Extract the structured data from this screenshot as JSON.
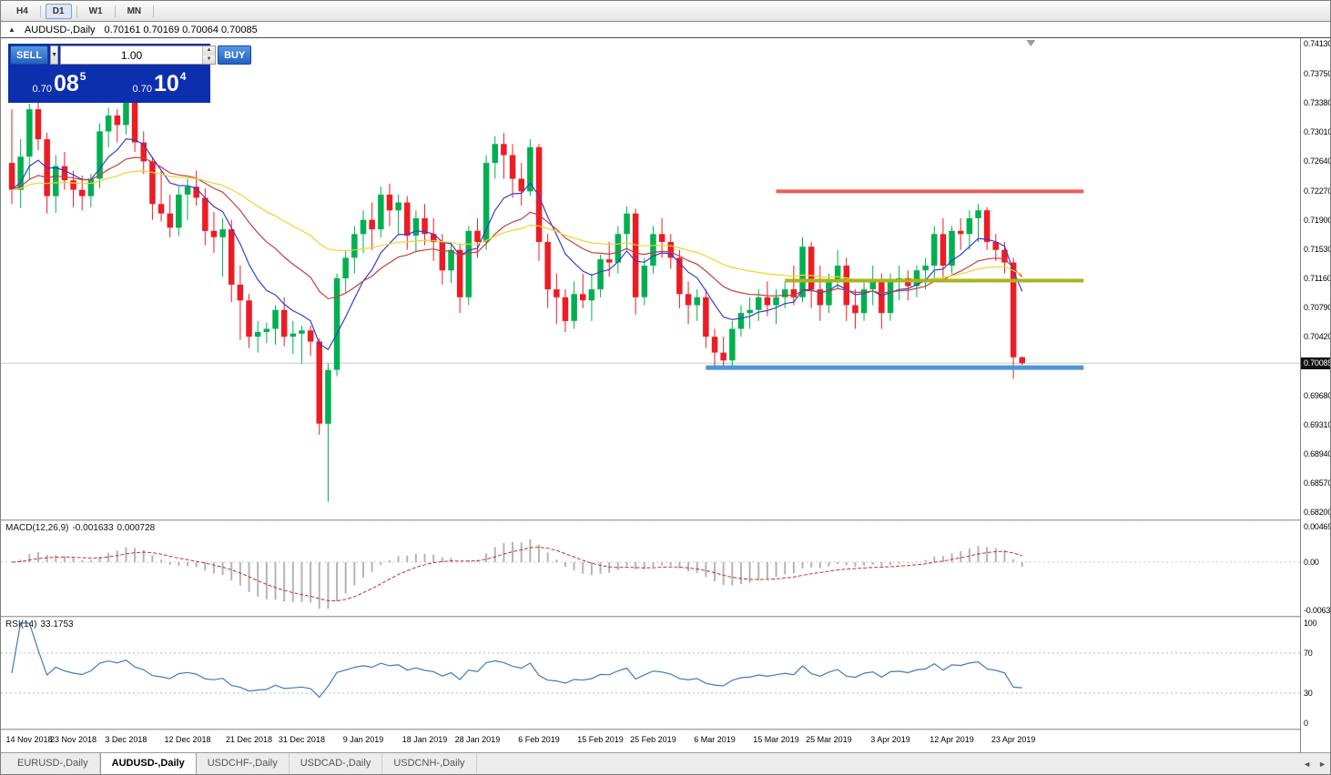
{
  "toolbar": {
    "periods": [
      "H4",
      "D1",
      "W1",
      "MN"
    ],
    "active": "D1"
  },
  "chart_header": {
    "collapse_icon": "▲",
    "symbol": "AUDUSD-,Daily",
    "ohlc": "0.70161 0.70169 0.70064 0.70085"
  },
  "one_click": {
    "sell_label": "SELL",
    "buy_label": "BUY",
    "volume": "1.00",
    "sell_price": {
      "big": "0.70",
      "pips": "08",
      "frac": "5"
    },
    "buy_price": {
      "big": "0.70",
      "pips": "10",
      "frac": "4"
    }
  },
  "price_scale": {
    "labels": [
      "0.74130",
      "0.73750",
      "0.73380",
      "0.73010",
      "0.72640",
      "0.72270",
      "0.71900",
      "0.71530",
      "0.71160",
      "0.70790",
      "0.70420",
      "0.69680",
      "0.69310",
      "0.68940",
      "0.68570",
      "0.68200"
    ],
    "current": "0.70085"
  },
  "indicators": {
    "macd": {
      "title": "MACD(12,26,9)",
      "value_main": "-0.001633",
      "value_signal": "0.000728",
      "scale_labels": [
        "0.004694",
        "0.00",
        "-0.00639"
      ],
      "ylim": [
        -0.00639,
        0.004694
      ],
      "histogram_color": "#b4b4b4",
      "signal_color": "#c03232"
    },
    "rsi": {
      "title": "RSI(14)",
      "value": "33.1753",
      "scale_labels": [
        "100",
        "70",
        "30",
        "0"
      ],
      "levels": [
        70,
        30
      ],
      "ylim": [
        0,
        100
      ],
      "line_color": "#3f7cb8"
    }
  },
  "tabs": {
    "items": [
      "EURUSD-,Daily",
      "AUDUSD-,Daily",
      "USDCHF-,Daily",
      "USDCAD-,Daily",
      "USDCNH-,Daily"
    ],
    "active": "AUDUSD-,Daily",
    "scroll_left_icon": "◄",
    "scroll_right_icon": "►"
  },
  "chart_data": {
    "type": "candlestick",
    "symbol": "AUDUSD",
    "timeframe": "Daily",
    "ylim": [
      0.682,
      0.7413
    ],
    "colors": {
      "up": "#00b050",
      "down": "#ed1c24"
    },
    "x_labels": [
      [
        0,
        "14 Nov 2018"
      ],
      [
        7,
        "23 Nov 2018"
      ],
      [
        13,
        "3 Dec 2018"
      ],
      [
        20,
        "12 Dec 2018"
      ],
      [
        27,
        "21 Dec 2018"
      ],
      [
        33,
        "31 Dec 2018"
      ],
      [
        40,
        "9 Jan 2019"
      ],
      [
        47,
        "18 Jan 2019"
      ],
      [
        53,
        "28 Jan 2019"
      ],
      [
        60,
        "6 Feb 2019"
      ],
      [
        67,
        "15 Feb 2019"
      ],
      [
        73,
        "25 Feb 2019"
      ],
      [
        80,
        "6 Mar 2019"
      ],
      [
        87,
        "15 Mar 2019"
      ],
      [
        93,
        "25 Mar 2019"
      ],
      [
        100,
        "3 Apr 2019"
      ],
      [
        107,
        "12 Apr 2019"
      ],
      [
        114,
        "23 Apr 2019"
      ]
    ],
    "moving_averages": [
      {
        "name": "ma-fast-blue",
        "period": 8,
        "color": "#3b3bd1"
      },
      {
        "name": "ma-medium-red",
        "period": 20,
        "color": "#c2403f"
      },
      {
        "name": "ma-slow-yellow",
        "period": 45,
        "color": "#f2d22e"
      }
    ],
    "trendlines": [
      {
        "name": "resistance-line",
        "price": 0.7226,
        "from_index": 87,
        "to_index": 122,
        "color": "#f05b57",
        "width": 4
      },
      {
        "name": "pivot-line",
        "price": 0.7113,
        "from_index": 88,
        "to_index": 122,
        "color": "#aab41c",
        "width": 4
      },
      {
        "name": "support-line",
        "price": 0.7003,
        "from_index": 79,
        "to_index": 122,
        "color": "#4e96d9",
        "width": 5
      }
    ],
    "layout": {
      "x_start": 12,
      "x_step": 9.65,
      "candle_width": 6.5,
      "pad_top": 6,
      "pad_bottom": 8
    },
    "candles": [
      [
        0.7262,
        0.733,
        0.721,
        0.7228
      ],
      [
        0.7228,
        0.7292,
        0.7205,
        0.727
      ],
      [
        0.727,
        0.7337,
        0.7242,
        0.733
      ],
      [
        0.733,
        0.734,
        0.7278,
        0.7292
      ],
      [
        0.7292,
        0.73,
        0.7198,
        0.722
      ],
      [
        0.722,
        0.7272,
        0.7199,
        0.7258
      ],
      [
        0.7258,
        0.7276,
        0.7228,
        0.724
      ],
      [
        0.724,
        0.7252,
        0.7206,
        0.7228
      ],
      [
        0.7228,
        0.7246,
        0.7202,
        0.722
      ],
      [
        0.722,
        0.7248,
        0.7206,
        0.7242
      ],
      [
        0.7242,
        0.7312,
        0.723,
        0.7302
      ],
      [
        0.7302,
        0.7332,
        0.7282,
        0.7322
      ],
      [
        0.7322,
        0.733,
        0.7288,
        0.731
      ],
      [
        0.731,
        0.7355,
        0.7298,
        0.734
      ],
      [
        0.734,
        0.7345,
        0.7276,
        0.7288
      ],
      [
        0.7288,
        0.7302,
        0.7248,
        0.7264
      ],
      [
        0.7264,
        0.727,
        0.719,
        0.721
      ],
      [
        0.721,
        0.7252,
        0.7188,
        0.7198
      ],
      [
        0.7198,
        0.7222,
        0.7168,
        0.718
      ],
      [
        0.718,
        0.7232,
        0.717,
        0.7222
      ],
      [
        0.7222,
        0.7242,
        0.719,
        0.7232
      ],
      [
        0.7232,
        0.7252,
        0.7208,
        0.7218
      ],
      [
        0.7218,
        0.723,
        0.7158,
        0.7176
      ],
      [
        0.7176,
        0.72,
        0.7148,
        0.7168
      ],
      [
        0.7168,
        0.7192,
        0.7118,
        0.7178
      ],
      [
        0.7178,
        0.719,
        0.7086,
        0.7108
      ],
      [
        0.7108,
        0.7132,
        0.7038,
        0.7088
      ],
      [
        0.7088,
        0.7096,
        0.7028,
        0.7042
      ],
      [
        0.7042,
        0.7062,
        0.7022,
        0.7048
      ],
      [
        0.7048,
        0.706,
        0.7034,
        0.7052
      ],
      [
        0.7052,
        0.7082,
        0.7032,
        0.7076
      ],
      [
        0.7076,
        0.7092,
        0.703,
        0.7042
      ],
      [
        0.7042,
        0.7062,
        0.702,
        0.7046
      ],
      [
        0.7046,
        0.7056,
        0.7008,
        0.705
      ],
      [
        0.705,
        0.7056,
        0.7018,
        0.7036
      ],
      [
        0.7036,
        0.704,
        0.6918,
        0.6932
      ],
      [
        0.6932,
        0.7008,
        0.6833,
        0.7
      ],
      [
        0.7,
        0.7122,
        0.6992,
        0.7116
      ],
      [
        0.7116,
        0.7152,
        0.7098,
        0.7142
      ],
      [
        0.7142,
        0.7182,
        0.7122,
        0.7172
      ],
      [
        0.7172,
        0.7202,
        0.7148,
        0.719
      ],
      [
        0.719,
        0.7212,
        0.7152,
        0.7178
      ],
      [
        0.7178,
        0.7232,
        0.7168,
        0.7222
      ],
      [
        0.7222,
        0.7236,
        0.7182,
        0.7202
      ],
      [
        0.7202,
        0.7222,
        0.7172,
        0.7212
      ],
      [
        0.7212,
        0.722,
        0.7152,
        0.717
      ],
      [
        0.717,
        0.7202,
        0.715,
        0.7192
      ],
      [
        0.7192,
        0.721,
        0.7158,
        0.7172
      ],
      [
        0.7172,
        0.7192,
        0.7138,
        0.7162
      ],
      [
        0.7162,
        0.7172,
        0.7108,
        0.7126
      ],
      [
        0.7126,
        0.7162,
        0.711,
        0.7152
      ],
      [
        0.7152,
        0.716,
        0.7072,
        0.7092
      ],
      [
        0.7092,
        0.7182,
        0.7082,
        0.7176
      ],
      [
        0.7176,
        0.7192,
        0.7142,
        0.7162
      ],
      [
        0.7162,
        0.7272,
        0.7152,
        0.7262
      ],
      [
        0.7262,
        0.7296,
        0.7242,
        0.7286
      ],
      [
        0.7286,
        0.73,
        0.7242,
        0.7272
      ],
      [
        0.7272,
        0.7286,
        0.7218,
        0.7242
      ],
      [
        0.7242,
        0.7262,
        0.7208,
        0.7226
      ],
      [
        0.7226,
        0.7292,
        0.722,
        0.7282
      ],
      [
        0.7282,
        0.7286,
        0.7138,
        0.7162
      ],
      [
        0.7162,
        0.7172,
        0.7078,
        0.7102
      ],
      [
        0.7102,
        0.7122,
        0.7058,
        0.7092
      ],
      [
        0.7092,
        0.7102,
        0.7048,
        0.7062
      ],
      [
        0.7062,
        0.7112,
        0.7052,
        0.7096
      ],
      [
        0.7096,
        0.7122,
        0.7078,
        0.7088
      ],
      [
        0.7088,
        0.7122,
        0.7062,
        0.7102
      ],
      [
        0.7102,
        0.7146,
        0.7092,
        0.714
      ],
      [
        0.714,
        0.7162,
        0.7118,
        0.7136
      ],
      [
        0.7136,
        0.7182,
        0.7122,
        0.7172
      ],
      [
        0.7172,
        0.7207,
        0.7152,
        0.7198
      ],
      [
        0.7198,
        0.7204,
        0.707,
        0.7092
      ],
      [
        0.7092,
        0.7142,
        0.7082,
        0.7132
      ],
      [
        0.7132,
        0.7182,
        0.7122,
        0.7172
      ],
      [
        0.7172,
        0.7192,
        0.7142,
        0.7162
      ],
      [
        0.7162,
        0.7172,
        0.7128,
        0.7142
      ],
      [
        0.7142,
        0.7152,
        0.7078,
        0.7096
      ],
      [
        0.7096,
        0.7112,
        0.7058,
        0.7082
      ],
      [
        0.7082,
        0.7102,
        0.7062,
        0.7092
      ],
      [
        0.7092,
        0.7102,
        0.7028,
        0.7042
      ],
      [
        0.7042,
        0.7052,
        0.7002,
        0.7022
      ],
      [
        0.7022,
        0.7042,
        0.7,
        0.7012
      ],
      [
        0.7012,
        0.7062,
        0.7003,
        0.7052
      ],
      [
        0.7052,
        0.7082,
        0.7042,
        0.7072
      ],
      [
        0.7072,
        0.7092,
        0.7052,
        0.7076
      ],
      [
        0.7076,
        0.7102,
        0.7062,
        0.7092
      ],
      [
        0.7092,
        0.7112,
        0.7068,
        0.7082
      ],
      [
        0.7082,
        0.7102,
        0.7058,
        0.7092
      ],
      [
        0.7092,
        0.7112,
        0.7078,
        0.7102
      ],
      [
        0.7102,
        0.7132,
        0.7082,
        0.7092
      ],
      [
        0.7092,
        0.7168,
        0.7086,
        0.7156
      ],
      [
        0.7156,
        0.7162,
        0.7078,
        0.7102
      ],
      [
        0.7102,
        0.7132,
        0.7062,
        0.7082
      ],
      [
        0.7082,
        0.7122,
        0.7072,
        0.7112
      ],
      [
        0.7112,
        0.7152,
        0.7102,
        0.7132
      ],
      [
        0.7132,
        0.7142,
        0.7062,
        0.7082
      ],
      [
        0.7082,
        0.7102,
        0.7052,
        0.7072
      ],
      [
        0.7072,
        0.7112,
        0.7062,
        0.7102
      ],
      [
        0.7102,
        0.7132,
        0.7082,
        0.7112
      ],
      [
        0.7112,
        0.7122,
        0.7052,
        0.7072
      ],
      [
        0.7072,
        0.7122,
        0.7062,
        0.7112
      ],
      [
        0.7112,
        0.7132,
        0.7088,
        0.7116
      ],
      [
        0.7116,
        0.7126,
        0.7088,
        0.7106
      ],
      [
        0.7106,
        0.7132,
        0.7092,
        0.7126
      ],
      [
        0.7126,
        0.7142,
        0.7102,
        0.7132
      ],
      [
        0.7132,
        0.7182,
        0.7112,
        0.7172
      ],
      [
        0.7172,
        0.7192,
        0.7112,
        0.7132
      ],
      [
        0.7132,
        0.7182,
        0.7122,
        0.7176
      ],
      [
        0.7176,
        0.7192,
        0.7152,
        0.7172
      ],
      [
        0.7172,
        0.7202,
        0.7152,
        0.7192
      ],
      [
        0.7192,
        0.721,
        0.7162,
        0.7202
      ],
      [
        0.7202,
        0.7206,
        0.7152,
        0.7162
      ],
      [
        0.7162,
        0.7172,
        0.7138,
        0.7152
      ],
      [
        0.7152,
        0.7162,
        0.7122,
        0.7136
      ],
      [
        0.7136,
        0.7142,
        0.6989,
        0.7016
      ],
      [
        0.70161,
        0.70169,
        0.70064,
        0.70085
      ]
    ]
  }
}
